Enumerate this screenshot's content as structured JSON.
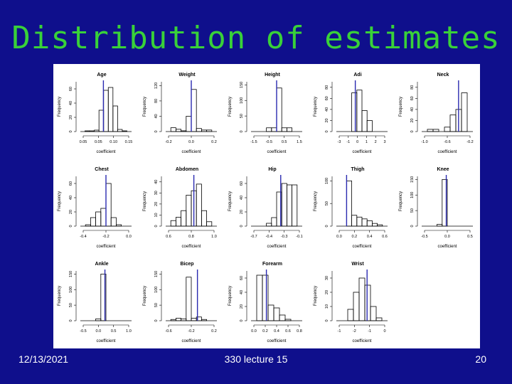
{
  "slide": {
    "title": "Distribution of estimates",
    "footer_date": "12/13/2021",
    "footer_center": "330 lecture 15",
    "page_number": "20"
  },
  "colors": {
    "background": "#0f0f8c",
    "title": "#39d139",
    "marker": "#2a2ab0",
    "bars": "#000000"
  },
  "chart_data": [
    {
      "type": "bar",
      "title": "Age",
      "ylabel": "Frequency",
      "xlabel": "coefficient",
      "xticks": [
        "0.05",
        "0.05",
        "0.10",
        "0.15"
      ],
      "yticks": [
        "0",
        "20",
        "40",
        "60"
      ],
      "ylim": [
        0,
        70
      ],
      "values": [
        0,
        1,
        1,
        2,
        30,
        58,
        62,
        36,
        3,
        1,
        0
      ],
      "marker": 0.45
    },
    {
      "type": "bar",
      "title": "Weight",
      "ylabel": "Frequency",
      "xlabel": "coefficient",
      "xticks": [
        "-0.2",
        "0.0",
        "0.2"
      ],
      "yticks": [
        "0",
        "40",
        "80",
        "120"
      ],
      "ylim": [
        0,
        130
      ],
      "values": [
        0,
        10,
        6,
        2,
        40,
        110,
        8,
        4,
        4,
        0
      ],
      "marker": 0.5
    },
    {
      "type": "bar",
      "title": "Height",
      "ylabel": "Frequency",
      "xlabel": "coefficient",
      "xticks": [
        "-1.5",
        "-0.5",
        "0.5",
        "1.5"
      ],
      "yticks": [
        "0",
        "50",
        "100",
        "150"
      ],
      "ylim": [
        0,
        160
      ],
      "values": [
        0,
        0,
        0,
        12,
        12,
        140,
        12,
        12,
        0,
        0
      ],
      "marker": 0.5
    },
    {
      "type": "bar",
      "title": "Adi",
      "ylabel": "Frequency",
      "xlabel": "coefficient",
      "xticks": [
        "-3",
        "-1",
        "0",
        "1",
        "2",
        "3"
      ],
      "yticks": [
        "0",
        "20",
        "40",
        "60",
        "80"
      ],
      "ylim": [
        0,
        90
      ],
      "values": [
        0,
        0,
        0,
        70,
        75,
        38,
        20,
        0,
        0,
        0
      ],
      "marker": 0.37
    },
    {
      "type": "bar",
      "title": "Neck",
      "ylabel": "Frequency",
      "xlabel": "coefficient",
      "xticks": [
        "-1.0",
        "-0.6",
        "-0.2"
      ],
      "yticks": [
        "0",
        "20",
        "40",
        "60",
        "80"
      ],
      "ylim": [
        0,
        90
      ],
      "values": [
        0,
        4,
        4,
        0,
        8,
        30,
        40,
        70,
        0
      ],
      "marker": 0.72
    },
    {
      "type": "bar",
      "title": "Chest",
      "ylabel": "Frequency",
      "xlabel": "coefficient",
      "xticks": [
        "-0.4",
        "-0.2",
        "0.0"
      ],
      "yticks": [
        "0",
        "20",
        "40",
        "60"
      ],
      "ylim": [
        0,
        70
      ],
      "values": [
        0,
        2,
        12,
        20,
        25,
        60,
        12,
        2,
        0,
        0
      ],
      "marker": 0.5
    },
    {
      "type": "bar",
      "title": "Abdomen",
      "ylabel": "Frequency",
      "xlabel": "coefficient",
      "xticks": [
        "0.6",
        "0.8",
        "1.0"
      ],
      "yticks": [
        "0",
        "10",
        "20",
        "30",
        "40"
      ],
      "ylim": [
        0,
        45
      ],
      "values": [
        0,
        5,
        8,
        14,
        28,
        32,
        38,
        14,
        4,
        0
      ],
      "marker": 0.55
    },
    {
      "type": "bar",
      "title": "Hip",
      "ylabel": "Frequency",
      "xlabel": "coefficient",
      "xticks": [
        "-0.7",
        "-0.4",
        "-0.3",
        "-0.1"
      ],
      "yticks": [
        "0",
        "20",
        "40",
        "60"
      ],
      "ylim": [
        0,
        70
      ],
      "values": [
        0,
        0,
        0,
        4,
        12,
        48,
        60,
        58,
        58,
        0
      ],
      "marker": 0.58
    },
    {
      "type": "bar",
      "title": "Thigh",
      "ylabel": "Frequency",
      "xlabel": "coefficient",
      "xticks": [
        "0.0",
        "0.2",
        "0.4",
        "0.6"
      ],
      "yticks": [
        "0",
        "50",
        "100"
      ],
      "ylim": [
        0,
        110
      ],
      "values": [
        0,
        0,
        100,
        24,
        20,
        16,
        12,
        6,
        3,
        0
      ],
      "marker": 0.2
    },
    {
      "type": "bar",
      "title": "Knee",
      "ylabel": "Frequency",
      "xlabel": "coefficient",
      "xticks": [
        "-0.5",
        "0.0",
        "0.5"
      ],
      "yticks": [
        "0",
        "50",
        "100",
        "150"
      ],
      "ylim": [
        0,
        160
      ],
      "values": [
        0,
        0,
        0,
        6,
        150,
        0,
        0,
        0,
        0,
        0
      ],
      "marker": 0.48
    },
    {
      "type": "bar",
      "title": "Ankle",
      "ylabel": "Frequency",
      "xlabel": "coefficient",
      "xticks": [
        "-0.5",
        "0.0",
        "0.5",
        "1.0"
      ],
      "yticks": [
        "0",
        "50",
        "100",
        "150"
      ],
      "ylim": [
        0,
        160
      ],
      "values": [
        0,
        0,
        0,
        6,
        150,
        0,
        0,
        0,
        0,
        0
      ],
      "marker": 0.48
    },
    {
      "type": "bar",
      "title": "Bicep",
      "ylabel": "Frequency",
      "xlabel": "coefficient",
      "xticks": [
        "-0.6",
        "-0.2",
        "0.2"
      ],
      "yticks": [
        "0",
        "50",
        "100",
        "150"
      ],
      "ylim": [
        0,
        160
      ],
      "values": [
        0,
        4,
        8,
        6,
        140,
        8,
        12,
        4,
        0,
        0
      ],
      "marker": 0.62
    },
    {
      "type": "bar",
      "title": "Forearm",
      "ylabel": "Frequency",
      "xlabel": "coefficient",
      "xticks": [
        "0.0",
        "0.2",
        "0.4",
        "0.6",
        "0.8"
      ],
      "yticks": [
        "0",
        "20",
        "40",
        "60"
      ],
      "ylim": [
        0,
        70
      ],
      "values": [
        0,
        64,
        64,
        22,
        18,
        8,
        2,
        0,
        0
      ],
      "marker": 0.3
    },
    {
      "type": "bar",
      "title": "Wrist",
      "ylabel": "Frequency",
      "xlabel": "coefficient",
      "xticks": [
        "-1",
        "-2",
        "-1",
        "0"
      ],
      "yticks": [
        "0",
        "10",
        "20",
        "30"
      ],
      "ylim": [
        0,
        35
      ],
      "values": [
        0,
        0,
        8,
        20,
        30,
        25,
        10,
        2,
        0
      ],
      "marker": 0.6
    }
  ]
}
